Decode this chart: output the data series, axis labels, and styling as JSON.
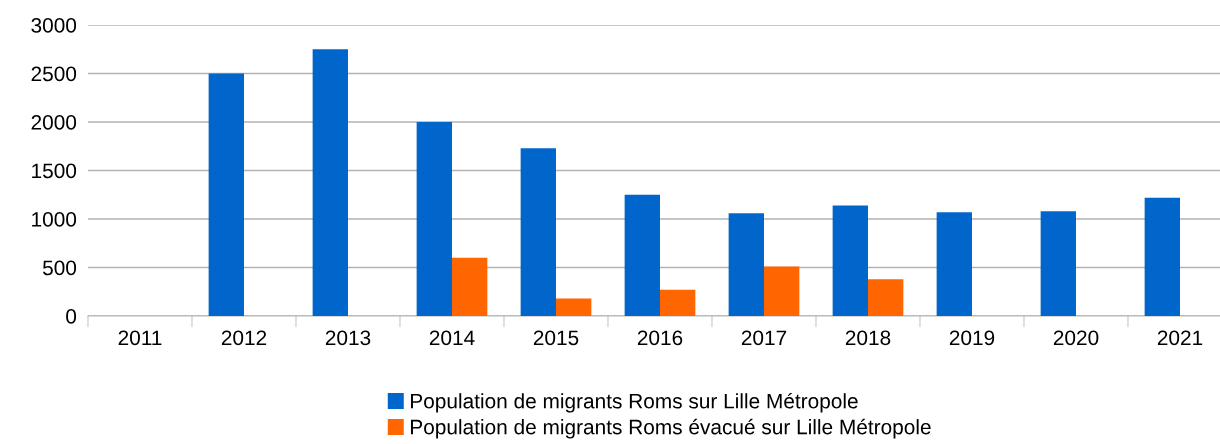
{
  "chart_data": {
    "type": "bar",
    "categories": [
      "2011",
      "2012",
      "2013",
      "2014",
      "2015",
      "2016",
      "2017",
      "2018",
      "2019",
      "2020",
      "2021"
    ],
    "series": [
      {
        "name": "Population de migrants Roms sur Lille Métropole",
        "color": "#0066cc",
        "values": [
          null,
          2500,
          2750,
          2000,
          1730,
          1250,
          1060,
          1140,
          1070,
          1080,
          1220
        ]
      },
      {
        "name": "Population de migrants Roms évacué sur Lille Métropole",
        "color": "#ff6600",
        "values": [
          null,
          null,
          null,
          600,
          180,
          270,
          510,
          380,
          null,
          null,
          null
        ]
      }
    ],
    "ylim": [
      0,
      3000
    ],
    "yticks": [
      0,
      500,
      1000,
      1500,
      2000,
      2500,
      3000
    ],
    "grid": "y",
    "legend": "bottom"
  }
}
